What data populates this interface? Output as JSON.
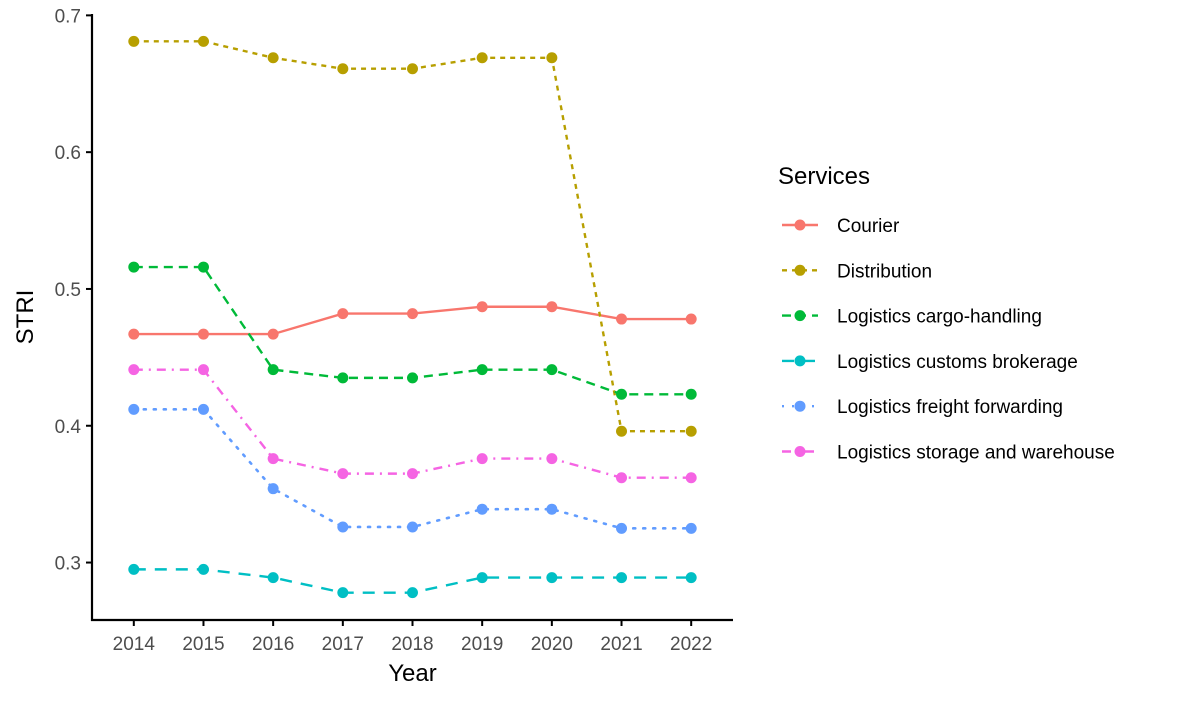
{
  "chart_data": {
    "type": "line",
    "title": "",
    "xlabel": "Year",
    "ylabel": "STRI",
    "x": [
      2014,
      2015,
      2016,
      2017,
      2018,
      2019,
      2020,
      2021,
      2022
    ],
    "xlim": [
      2013.4,
      2022.6
    ],
    "ylim": [
      0.258,
      0.701
    ],
    "yticks": [
      0.3,
      0.4,
      0.5,
      0.6,
      0.7
    ],
    "ytick_labels": [
      "0.3",
      "0.4",
      "0.5",
      "0.6",
      "0.7"
    ],
    "xtick_labels": [
      "2014",
      "2015",
      "2016",
      "2017",
      "2018",
      "2019",
      "2020",
      "2021",
      "2022"
    ],
    "grid": false,
    "legend": {
      "title": "Services",
      "placement": "right"
    },
    "series": [
      {
        "name": "Courier",
        "color": "#F8766D",
        "linestyle": "solid",
        "values": [
          0.467,
          0.467,
          0.467,
          0.482,
          0.482,
          0.487,
          0.487,
          0.478,
          0.478
        ]
      },
      {
        "name": "Distribution",
        "color": "#B79F00",
        "linestyle": "dotted-dash",
        "values": [
          0.681,
          0.681,
          0.669,
          0.661,
          0.661,
          0.669,
          0.669,
          0.396,
          0.396
        ]
      },
      {
        "name": "Logistics cargo-handling",
        "color": "#00BA38",
        "linestyle": "dashed",
        "values": [
          0.516,
          0.516,
          0.441,
          0.435,
          0.435,
          0.441,
          0.441,
          0.423,
          0.423
        ]
      },
      {
        "name": "Logistics customs brokerage",
        "color": "#00BFC4",
        "linestyle": "long-dash",
        "values": [
          0.295,
          0.295,
          0.289,
          0.278,
          0.278,
          0.289,
          0.289,
          0.289,
          0.289
        ]
      },
      {
        "name": "Logistics freight forwarding",
        "color": "#619CFF",
        "linestyle": "dotted",
        "values": [
          0.412,
          0.412,
          0.354,
          0.326,
          0.326,
          0.339,
          0.339,
          0.325,
          0.325
        ]
      },
      {
        "name": "Logistics storage and warehouse",
        "color": "#F564E3",
        "linestyle": "dash-dot",
        "values": [
          0.441,
          0.441,
          0.376,
          0.365,
          0.365,
          0.376,
          0.376,
          0.362,
          0.362
        ]
      }
    ]
  }
}
